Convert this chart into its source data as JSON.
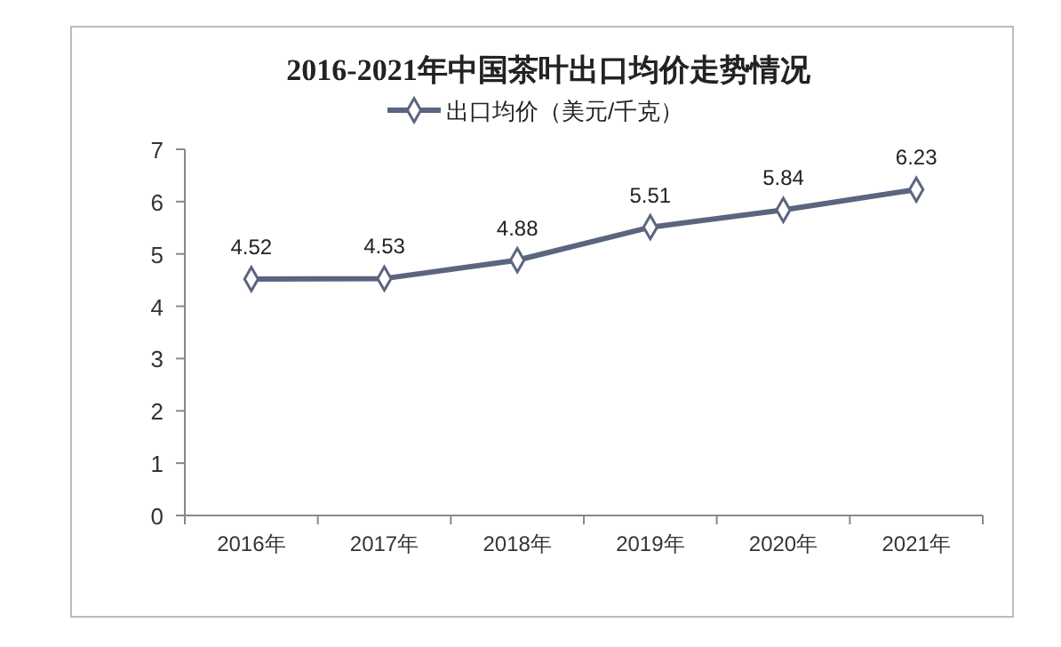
{
  "chart_data": {
    "type": "line",
    "title": "2016-2021年中国茶叶出口均价走势情况",
    "categories": [
      "2016年",
      "2017年",
      "2018年",
      "2019年",
      "2020年",
      "2021年"
    ],
    "series": [
      {
        "name": "出口均价（美元/千克）",
        "color": "#5b6580",
        "values": [
          4.52,
          4.53,
          4.88,
          5.51,
          5.84,
          6.23
        ]
      }
    ],
    "ylim": [
      0,
      7
    ],
    "yticks": [
      0,
      1,
      2,
      3,
      4,
      5,
      6,
      7
    ],
    "grid": false,
    "legend": "top",
    "marker": "diamond",
    "data_labels": true
  }
}
